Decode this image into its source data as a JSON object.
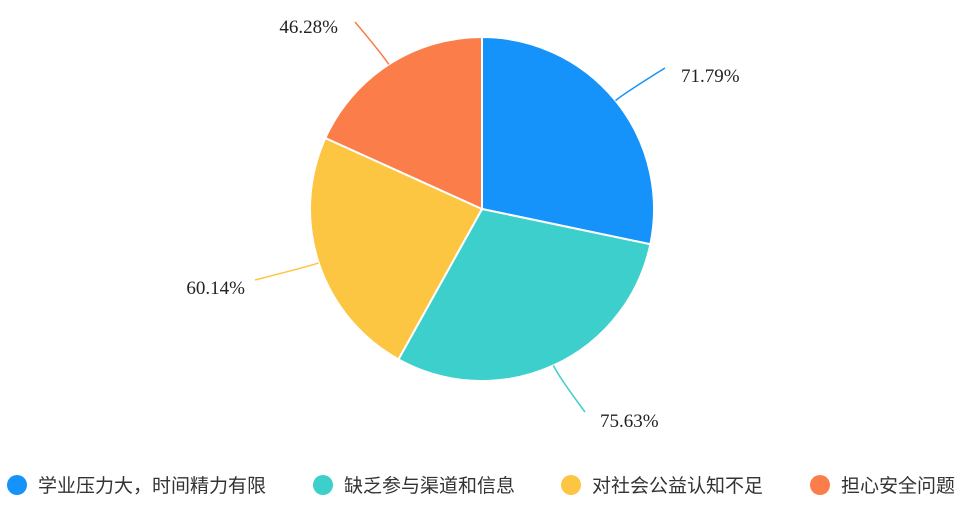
{
  "chart_data": {
    "type": "pie",
    "title": "",
    "legend_position": "bottom",
    "categories": [
      "学业压力大，时间精力有限",
      "缺乏参与渠道和信息",
      "对社会公益认知不足",
      "担心安全问题"
    ],
    "values": [
      71.79,
      75.63,
      60.14,
      46.28
    ],
    "data_labels": [
      "71.79%",
      "75.63%",
      "60.14%",
      "46.28%"
    ],
    "unit": "%",
    "start_angle": "12 o'clock",
    "direction": "clockwise",
    "colors": [
      "#1593fb",
      "#3ccfcb",
      "#fcc542",
      "#fb7d4a"
    ]
  }
}
